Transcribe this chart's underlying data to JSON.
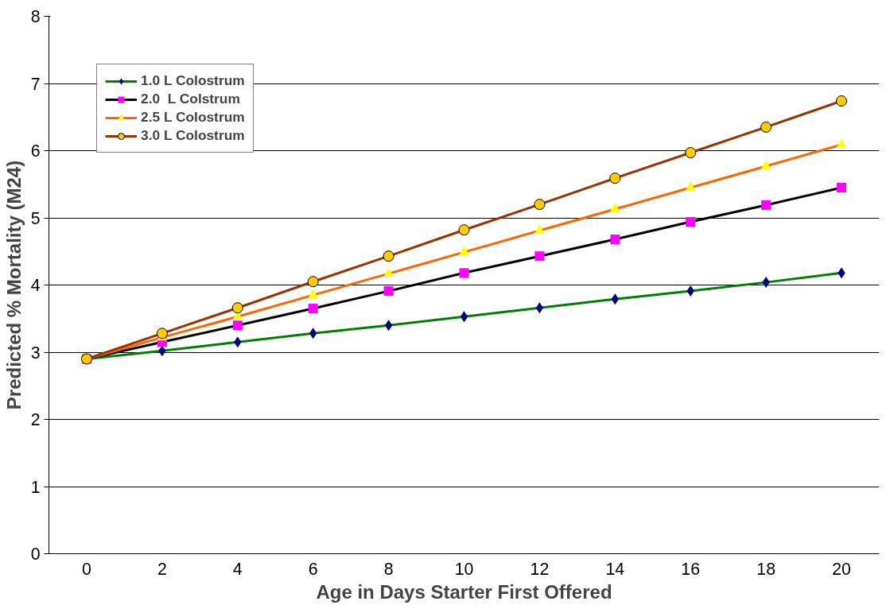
{
  "chart_data": {
    "type": "line",
    "xlabel": "Age in Days Starter First Offered",
    "ylabel": "Predicted % Mortality (M24)",
    "categories": [
      "0",
      "2",
      "4",
      "6",
      "8",
      "10",
      "12",
      "14",
      "16",
      "18",
      "20"
    ],
    "ylim": [
      0,
      8
    ],
    "yticks": [
      0,
      1,
      2,
      3,
      4,
      5,
      6,
      7,
      8
    ],
    "grid": "y",
    "legend": "top left",
    "series": [
      {
        "name": "1.0 L Colostrum",
        "color": "#008000",
        "marker": "diamond",
        "colors": [
          "#000080",
          "#000080",
          "#000080",
          "#000080",
          "#000080",
          "#000080",
          "#000080",
          "#000080",
          "#000080",
          "#000080",
          "#000080"
        ],
        "values": [
          2.9,
          3.02,
          3.15,
          3.28,
          3.4,
          3.53,
          3.66,
          3.79,
          3.91,
          4.04,
          4.18
        ]
      },
      {
        "name": "2.0  L Colstrum",
        "color": "#000000",
        "marker": "square",
        "colors": [
          "#ff00ff",
          "#ff00ff",
          "#ff00ff",
          "#ff00ff",
          "#ff00ff",
          "#ff00ff",
          "#ff00ff",
          "#ff00ff",
          "#ff00ff",
          "#ff00ff",
          "#ff00ff"
        ],
        "values": [
          2.9,
          3.15,
          3.4,
          3.65,
          3.91,
          4.18,
          4.43,
          4.68,
          4.94,
          5.19,
          5.45
        ]
      },
      {
        "name": "2.5 L Colostrum",
        "color": "#ff6600",
        "marker": "triangle",
        "colors": [
          "#ffff00",
          "#ffff00",
          "#ffff00",
          "#ffff00",
          "#ffff00",
          "#ffff00",
          "#ffff00",
          "#ffff00",
          "#ffff00",
          "#ffff00",
          "#ffff00"
        ],
        "values": [
          2.9,
          3.22,
          3.53,
          3.85,
          4.17,
          4.49,
          4.81,
          5.13,
          5.45,
          5.77,
          6.09
        ]
      },
      {
        "name": "3.0 L Colostrum",
        "color": "#993300",
        "marker": "circle",
        "colors": [
          "#ffcc00",
          "#ffcc00",
          "#ffcc00",
          "#ffcc00",
          "#ffcc00",
          "#ffcc00",
          "#ffcc00",
          "#ffcc00",
          "#ffcc00",
          "#ffcc00",
          "#ffcc00"
        ],
        "values": [
          2.9,
          3.28,
          3.66,
          4.05,
          4.43,
          4.82,
          5.2,
          5.59,
          5.97,
          6.35,
          6.74
        ]
      }
    ]
  }
}
